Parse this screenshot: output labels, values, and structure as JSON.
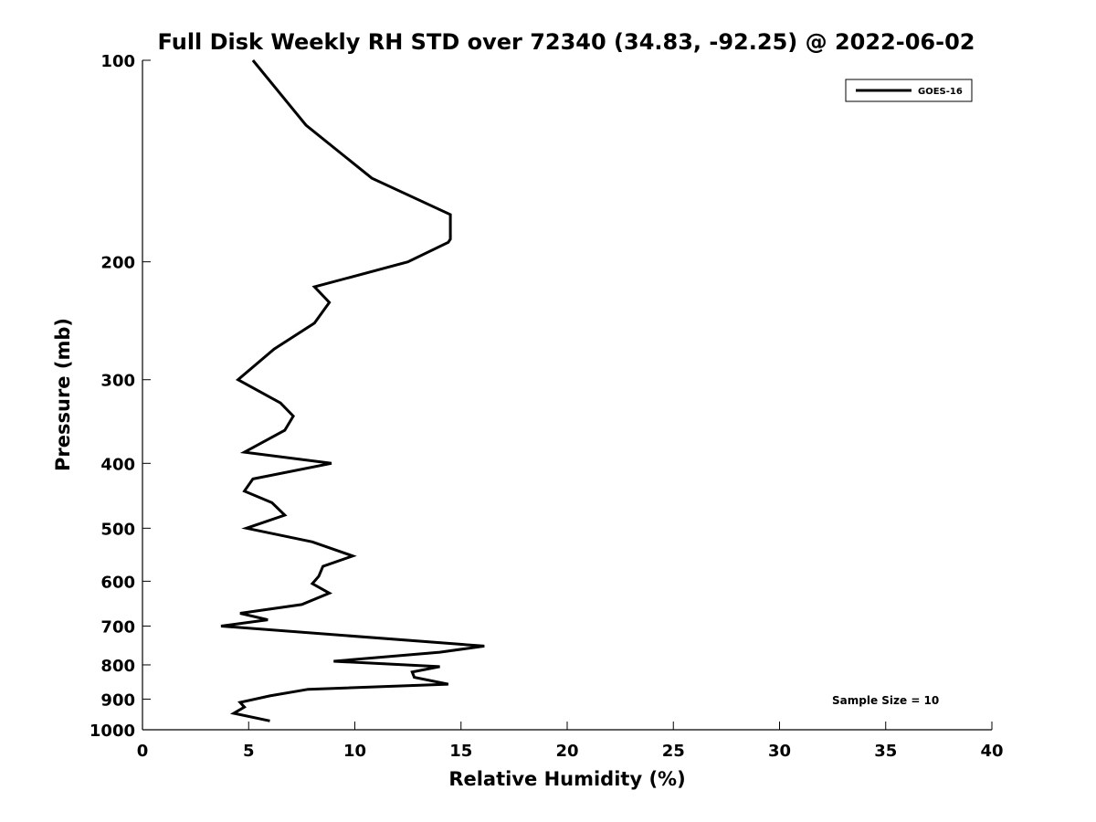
{
  "chart_data": {
    "type": "line",
    "title": "Full Disk Weekly RH STD over 72340 (34.83, -92.25) @ 2022-06-02",
    "xlabel": "Relative Humidity (%)",
    "ylabel": "Pressure (mb)",
    "xlim": [
      0,
      40
    ],
    "ylim": [
      100,
      1000
    ],
    "y_scale": "log",
    "y_inverted": true,
    "grid": false,
    "legend_position": "top-right",
    "xticks": [
      "0",
      "5",
      "10",
      "15",
      "20",
      "25",
      "30",
      "35",
      "40"
    ],
    "yticks": [
      "100",
      "200",
      "300",
      "400",
      "500",
      "600",
      "700",
      "800",
      "900",
      "1000"
    ],
    "annotation": "Sample Size = 10",
    "series": [
      {
        "name": "GOES-16",
        "color": "#000000",
        "points": [
          [
            5.2,
            100
          ],
          [
            7.7,
            125
          ],
          [
            10.8,
            150
          ],
          [
            14.5,
            170
          ],
          [
            14.5,
            185
          ],
          [
            14.4,
            187
          ],
          [
            12.5,
            200
          ],
          [
            8.1,
            218
          ],
          [
            8.8,
            230
          ],
          [
            8.1,
            247
          ],
          [
            6.2,
            270
          ],
          [
            4.5,
            300
          ],
          [
            6.5,
            325
          ],
          [
            7.1,
            340
          ],
          [
            6.7,
            357
          ],
          [
            4.8,
            385
          ],
          [
            8.9,
            400
          ],
          [
            5.2,
            422
          ],
          [
            4.8,
            440
          ],
          [
            6.1,
            458
          ],
          [
            6.7,
            478
          ],
          [
            4.9,
            500
          ],
          [
            8.0,
            524
          ],
          [
            9.9,
            550
          ],
          [
            8.5,
            570
          ],
          [
            8.3,
            590
          ],
          [
            8.0,
            605
          ],
          [
            8.8,
            625
          ],
          [
            7.5,
            650
          ],
          [
            4.6,
            670
          ],
          [
            5.9,
            685
          ],
          [
            3.7,
            700
          ],
          [
            16.1,
            750
          ],
          [
            14.0,
            766
          ],
          [
            9.0,
            790
          ],
          [
            14.0,
            805
          ],
          [
            12.7,
            820
          ],
          [
            12.8,
            835
          ],
          [
            14.4,
            855
          ],
          [
            7.8,
            870
          ],
          [
            6.0,
            890
          ],
          [
            4.6,
            910
          ],
          [
            4.8,
            925
          ],
          [
            4.3,
            945
          ],
          [
            6.0,
            970
          ]
        ]
      }
    ]
  }
}
